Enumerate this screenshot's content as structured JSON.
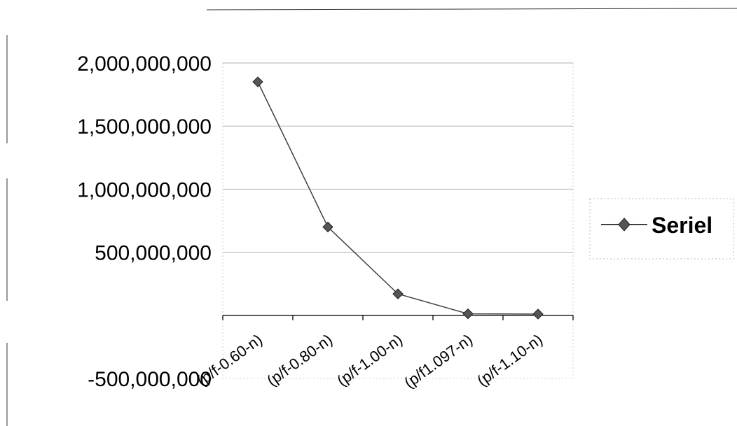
{
  "chart_data": {
    "type": "line",
    "title": "",
    "xlabel": "",
    "ylabel": "",
    "categories": [
      "(p/f-0.60-n)",
      "(p/f-0.80-n)",
      "(p/f-1.00-n)",
      "(p/f1.097-n)",
      "(p/f-1.10-n)"
    ],
    "series": [
      {
        "name": "Seriel",
        "values": [
          1850000000,
          700000000,
          170000000,
          12000000,
          10000000
        ],
        "color": "#404040",
        "marker": "diamond"
      }
    ],
    "y_ticks": [
      "2,000,000,000",
      "1,500,000,000",
      "1,000,000,000",
      "500,000,000",
      "-500,000,000"
    ],
    "y_tick_values": [
      2000000000,
      1500000000,
      1000000000,
      500000000,
      -500000000
    ],
    "ylim": [
      -500000000,
      2000000000
    ],
    "grid": true,
    "legend_position": "right"
  }
}
